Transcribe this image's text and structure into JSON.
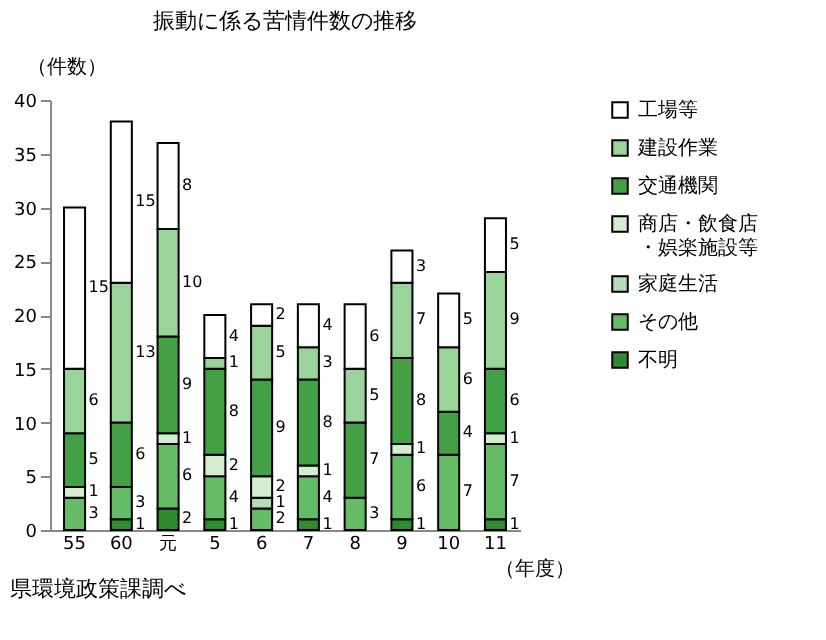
{
  "chart_data": {
    "type": "bar",
    "stacked": true,
    "title": "振動に係る苦情件数の推移",
    "ylabel": "（件数）",
    "xlabel": "（年度）",
    "annotations": [
      "県環境政策課調べ"
    ],
    "categories": [
      "55",
      "60",
      "元",
      "5",
      "6",
      "7",
      "8",
      "9",
      "10",
      "11"
    ],
    "series": [
      {
        "name": "不明",
        "color": "#2e8b2e",
        "values": [
          null,
          1,
          2,
          1,
          null,
          1,
          null,
          1,
          null,
          1
        ]
      },
      {
        "name": "その他",
        "color": "#66bb66",
        "values": [
          3,
          3,
          6,
          4,
          2,
          4,
          3,
          6,
          7,
          7
        ]
      },
      {
        "name": "家庭生活",
        "color": "#b5ddb5",
        "values": [
          null,
          null,
          null,
          null,
          1,
          null,
          null,
          null,
          null,
          null
        ]
      },
      {
        "name": "商店・飲食店・娯楽施設等",
        "color": "#d4ecd0",
        "values": [
          1,
          null,
          1,
          2,
          2,
          1,
          null,
          1,
          null,
          1
        ]
      },
      {
        "name": "交通機関",
        "color": "#44a044",
        "values": [
          5,
          6,
          9,
          8,
          9,
          8,
          7,
          8,
          4,
          6
        ]
      },
      {
        "name": "建設作業",
        "color": "#9ad49a",
        "values": [
          6,
          13,
          10,
          1,
          5,
          3,
          5,
          7,
          6,
          9
        ]
      },
      {
        "name": "工場等",
        "color": "#ffffff",
        "values": [
          15,
          15,
          8,
          4,
          2,
          4,
          6,
          3,
          5,
          5
        ]
      }
    ],
    "ylim": [
      0,
      40
    ],
    "yticks": [
      0,
      5,
      10,
      15,
      20,
      25,
      30,
      35,
      40
    ],
    "grid": false,
    "legend": "right",
    "data_labels": true
  }
}
